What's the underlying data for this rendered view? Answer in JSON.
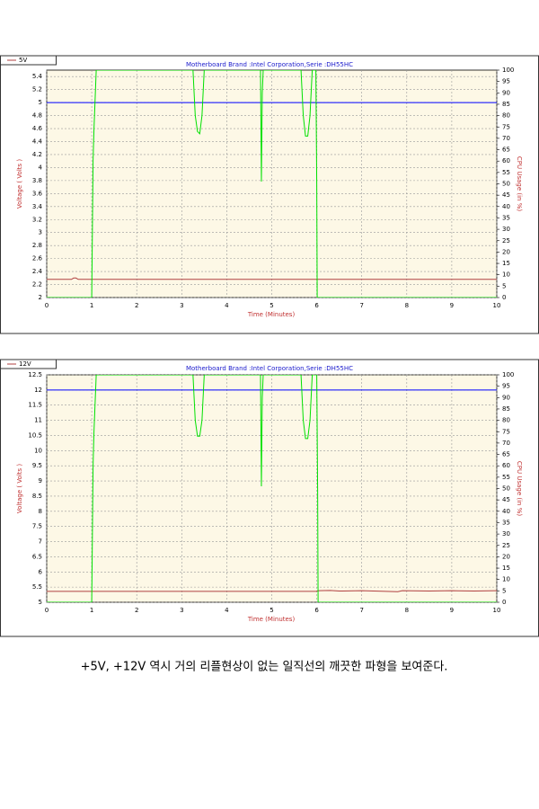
{
  "chart_data": [
    {
      "type": "line",
      "title": "Motherboard Brand :Intel Corporation,Serie :DH55HC",
      "xlabel": "Time (Minutes)",
      "ylabel": "Voltage ( Volts )",
      "y2label": "CPU Usage (in %)",
      "xlim": [
        0,
        10
      ],
      "xticks": [
        0,
        1,
        2,
        3,
        4,
        5,
        6,
        7,
        8,
        9,
        10
      ],
      "ylim": [
        2,
        5.5
      ],
      "yticks": [
        2,
        2.2,
        2.4,
        2.6,
        2.8,
        3,
        3.2,
        3.4,
        3.6,
        3.8,
        4,
        4.2,
        4.4,
        4.6,
        4.8,
        5,
        5.2,
        5.4
      ],
      "y2lim": [
        0,
        100
      ],
      "y2ticks": [
        0,
        5,
        10,
        15,
        20,
        25,
        30,
        35,
        40,
        45,
        50,
        55,
        60,
        65,
        70,
        75,
        80,
        85,
        90,
        95,
        100
      ],
      "grid": true,
      "series": [
        {
          "name": "5V",
          "color": "#b04040",
          "x": [
            0,
            0.55,
            0.6,
            0.65,
            0.7,
            10
          ],
          "values": [
            2.28,
            2.28,
            2.3,
            2.3,
            2.28,
            2.28
          ]
        },
        {
          "color": "#0000ff",
          "x": [
            0,
            10
          ],
          "values": [
            5,
            5
          ]
        },
        {
          "color": "#00e000",
          "axis": "y2",
          "x": [
            0,
            0.99,
            1.0,
            1.03,
            1.05,
            1.1,
            3.25,
            3.3,
            3.35,
            3.4,
            3.45,
            3.5,
            4.75,
            4.77,
            4.79,
            4.81,
            5.65,
            5.7,
            5.75,
            5.8,
            5.85,
            5.9,
            5.98,
            6.0,
            6.01,
            6.02,
            10
          ],
          "values": [
            0,
            0,
            0,
            60,
            74,
            100,
            100,
            80,
            73,
            72,
            80,
            100,
            100,
            51,
            90,
            100,
            100,
            80,
            71,
            71,
            80,
            100,
            100,
            50,
            0,
            0,
            0
          ]
        }
      ]
    },
    {
      "type": "line",
      "title": "Motherboard Brand :Intel Corporation,Serie :DH55HC",
      "xlabel": "Time (Minutes)",
      "ylabel": "Voltage ( Volts )",
      "y2label": "CPU Usage (in %)",
      "xlim": [
        0,
        10
      ],
      "xticks": [
        0,
        1,
        2,
        3,
        4,
        5,
        6,
        7,
        8,
        9,
        10
      ],
      "ylim": [
        5,
        12.5
      ],
      "yticks": [
        5,
        5.5,
        6,
        6.5,
        7,
        7.5,
        8,
        8.5,
        9,
        9.5,
        10,
        10.5,
        11,
        11.5,
        12,
        12.5
      ],
      "y2lim": [
        0,
        100
      ],
      "y2ticks": [
        0,
        5,
        10,
        15,
        20,
        25,
        30,
        35,
        40,
        45,
        50,
        55,
        60,
        65,
        70,
        75,
        80,
        85,
        90,
        95,
        100
      ],
      "grid": true,
      "series": [
        {
          "name": "12V",
          "color": "#b04040",
          "x": [
            0,
            5.98,
            6.05,
            6.3,
            6.5,
            7.0,
            7.8,
            7.9,
            8.5,
            9.0,
            9.5,
            10
          ],
          "values": [
            5.36,
            5.36,
            5.38,
            5.39,
            5.37,
            5.38,
            5.35,
            5.38,
            5.37,
            5.38,
            5.37,
            5.38
          ]
        },
        {
          "color": "#0000ff",
          "x": [
            0,
            10
          ],
          "values": [
            12,
            12
          ]
        },
        {
          "color": "#00e000",
          "axis": "y2",
          "x": [
            0,
            0.99,
            1.0,
            1.03,
            1.05,
            1.1,
            3.25,
            3.3,
            3.35,
            3.4,
            3.45,
            3.5,
            4.75,
            4.77,
            4.79,
            4.81,
            5.65,
            5.7,
            5.75,
            5.8,
            5.85,
            5.9,
            6.0,
            6.02,
            6.03,
            6.04,
            10
          ],
          "values": [
            0,
            0,
            0,
            60,
            75,
            100,
            100,
            80,
            73,
            73,
            80,
            100,
            100,
            51,
            90,
            100,
            100,
            80,
            72,
            72,
            80,
            100,
            100,
            49,
            0,
            0,
            0
          ]
        }
      ]
    }
  ],
  "caption": "+5V, +12V 역시 거의 리플현상이 없는 일직선의 깨끗한 파형을 보여준다."
}
